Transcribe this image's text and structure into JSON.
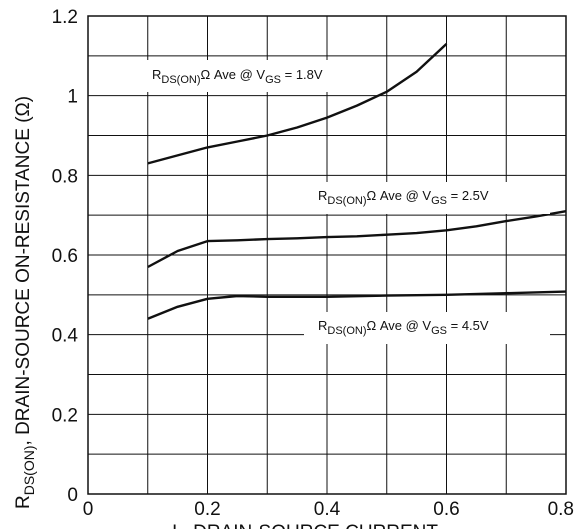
{
  "chart_data": {
    "type": "line",
    "xlim": [
      0,
      0.8
    ],
    "ylim": [
      0,
      1.2
    ],
    "x_ticks": [
      "0",
      "0.2",
      "0.4",
      "0.6",
      "0.8"
    ],
    "y_ticks": [
      "0",
      "0.2",
      "0.4",
      "0.6",
      "0.8",
      "1",
      "1.2"
    ],
    "grid": true,
    "ylabel": {
      "pre": "R",
      "sub": "DS(ON)",
      "post": ", DRAIN-SOURCE ON-RESISTANCE (Ω)"
    },
    "xlabel": "I , DRAIN-SOURCE CURRENT",
    "series": [
      {
        "name": "RDS(ON)Ω Ave @ VGS = 1.8V",
        "label": {
          "r": "R",
          "rsub": "DS(ON)",
          "mid": "Ω Ave @ V",
          "vsub": "GS",
          "tail": " = 1.8V"
        },
        "x": [
          0.1,
          0.15,
          0.2,
          0.25,
          0.3,
          0.35,
          0.4,
          0.45,
          0.5,
          0.55,
          0.6
        ],
        "y": [
          0.83,
          0.85,
          0.87,
          0.885,
          0.9,
          0.92,
          0.945,
          0.975,
          1.01,
          1.06,
          1.13
        ]
      },
      {
        "name": "RDS(ON)Ω Ave @ VGS = 2.5V",
        "label": {
          "r": "R",
          "rsub": "DS(ON)",
          "mid": "Ω Ave @ V",
          "vsub": "GS",
          "tail": " = 2.5V"
        },
        "x": [
          0.1,
          0.15,
          0.2,
          0.25,
          0.3,
          0.35,
          0.4,
          0.45,
          0.5,
          0.55,
          0.6,
          0.65,
          0.7,
          0.75,
          0.8
        ],
        "y": [
          0.57,
          0.61,
          0.635,
          0.637,
          0.64,
          0.642,
          0.645,
          0.647,
          0.651,
          0.655,
          0.662,
          0.672,
          0.685,
          0.697,
          0.71
        ]
      },
      {
        "name": "RDS(ON)Ω Ave @ VGS = 4.5V",
        "label": {
          "r": "R",
          "rsub": "DS(ON)",
          "mid": "Ω Ave @ V",
          "vsub": "GS",
          "tail": " = 4.5V"
        },
        "x": [
          0.1,
          0.15,
          0.2,
          0.25,
          0.3,
          0.4,
          0.5,
          0.6,
          0.7,
          0.8
        ],
        "y": [
          0.44,
          0.47,
          0.49,
          0.497,
          0.495,
          0.495,
          0.498,
          0.5,
          0.504,
          0.508
        ]
      }
    ]
  }
}
